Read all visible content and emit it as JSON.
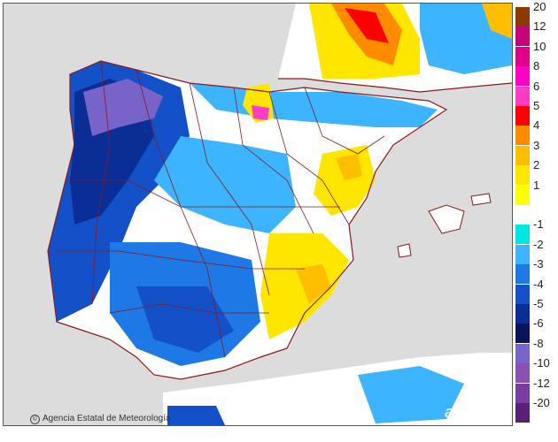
{
  "map": {
    "credit_text": "Agencia Estatal de Meteorología",
    "watermark_text": "aemet",
    "colors": {
      "sea": "#dcdcdc",
      "neutral": "#ffffff",
      "border": "#8b1a1a"
    }
  },
  "legend": {
    "items": [
      {
        "label": "20",
        "color": "#8b3a00"
      },
      {
        "label": "12",
        "color": "#c8007a"
      },
      {
        "label": "10",
        "color": "#e0008c"
      },
      {
        "label": "8",
        "color": "#ff00c8"
      },
      {
        "label": "6",
        "color": "#ff3cc8"
      },
      {
        "label": "5",
        "color": "#ff0000"
      },
      {
        "label": "4",
        "color": "#ff8c00"
      },
      {
        "label": "3",
        "color": "#ffbe00"
      },
      {
        "label": "2",
        "color": "#ffe600"
      },
      {
        "label": "1",
        "color": "#ffff00"
      },
      {
        "label": "",
        "color": "#ffffff"
      },
      {
        "label": "-1",
        "color": "#00e6e6"
      },
      {
        "label": "-2",
        "color": "#3cb4ff"
      },
      {
        "label": "-3",
        "color": "#1e78e6"
      },
      {
        "label": "-4",
        "color": "#1450c8"
      },
      {
        "label": "-5",
        "color": "#0a2d96"
      },
      {
        "label": "-6",
        "color": "#0a145a"
      },
      {
        "label": "-8",
        "color": "#7864c8"
      },
      {
        "label": "-10",
        "color": "#8c50b4"
      },
      {
        "label": "-12",
        "color": "#7a3ca0"
      },
      {
        "label": "-20",
        "color": "#5a1e78"
      }
    ]
  }
}
